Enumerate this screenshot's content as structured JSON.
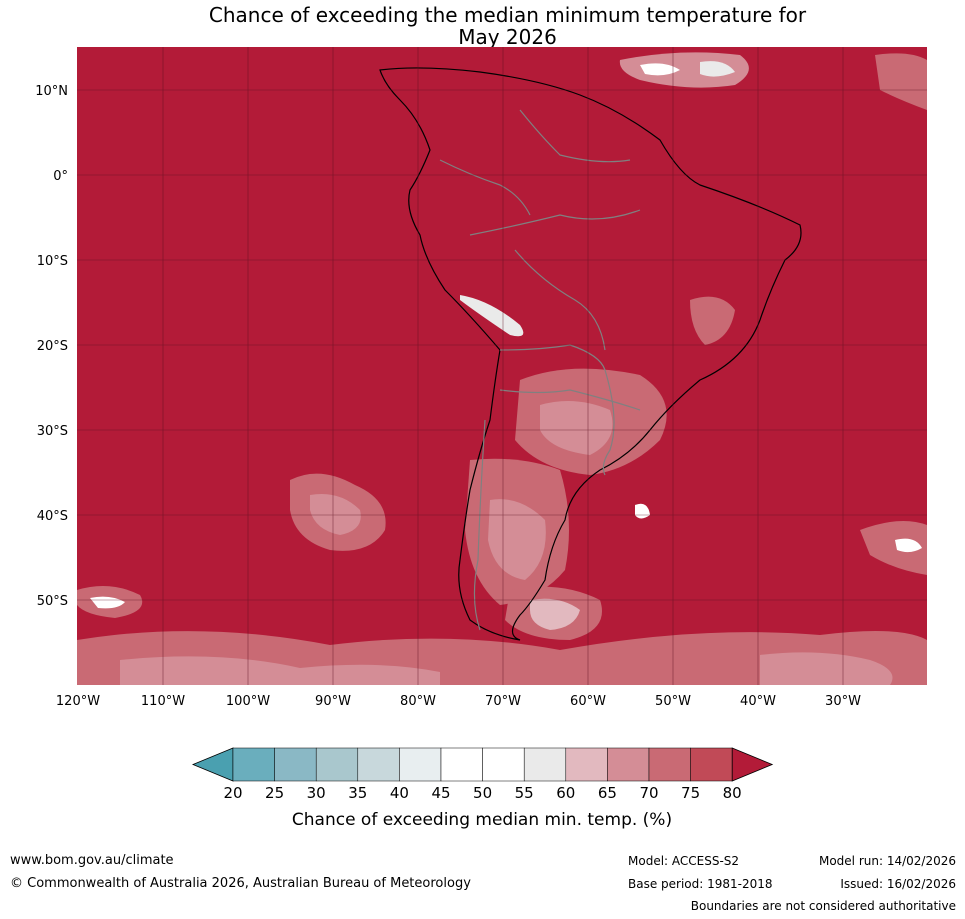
{
  "title": {
    "line1": "Chance of exceeding the median minimum temperature for",
    "line2": "May 2026"
  },
  "map": {
    "lat_labels": [
      "10°N",
      "0°",
      "10°S",
      "20°S",
      "30°S",
      "40°S",
      "50°S"
    ],
    "lon_labels": [
      "120°W",
      "110°W",
      "100°W",
      "90°W",
      "80°W",
      "70°W",
      "60°W",
      "50°W",
      "40°W",
      "30°W"
    ],
    "colors": {
      "ocean_high": "#b31b38",
      "land_outline": "#000000",
      "borders": "#808080",
      "grid": "#5a1020"
    }
  },
  "colorbar": {
    "ticks": [
      "20",
      "25",
      "30",
      "35",
      "40",
      "45",
      "50",
      "55",
      "60",
      "65",
      "70",
      "75",
      "80"
    ],
    "colors": [
      "#4aa0b0",
      "#6aaebd",
      "#8ab8c5",
      "#a9c7cd",
      "#c8d8dc",
      "#e8eef0",
      "#ffffff",
      "#ffffff",
      "#eaeaea",
      "#e2b9bf",
      "#d48d96",
      "#c96a74",
      "#c14a57",
      "#b31b38"
    ],
    "label": "Chance of exceeding median min. temp. (%)"
  },
  "footer": {
    "url": "www.bom.gov.au/climate",
    "copyright": "© Commonwealth of Australia 2026, Australian Bureau of Meteorology",
    "model": "Model: ACCESS-S2",
    "base_period": "Base period: 1981-2018",
    "model_run": "Model run: 14/02/2026",
    "issued": "Issued: 16/02/2026",
    "disclaimer": "Boundaries are not considered authoritative"
  }
}
